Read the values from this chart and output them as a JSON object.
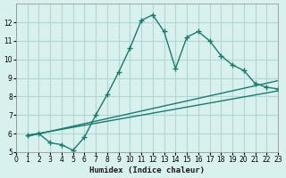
{
  "xlabel": "Humidex (Indice chaleur)",
  "ylabel": "",
  "bg_color": "#d8f0ee",
  "grid_color": "#b0d8d4",
  "line_color": "#1a7a6e",
  "xlim": [
    0,
    23
  ],
  "ylim": [
    5,
    13
  ],
  "yticks": [
    5,
    6,
    7,
    8,
    9,
    10,
    11,
    12
  ],
  "xticks": [
    0,
    1,
    2,
    3,
    4,
    5,
    6,
    7,
    8,
    9,
    10,
    11,
    12,
    13,
    14,
    15,
    16,
    17,
    18,
    19,
    20,
    21,
    22,
    23
  ],
  "series1_x": [
    1,
    2,
    3,
    4,
    5,
    6,
    7,
    8,
    9,
    10,
    11,
    12,
    13,
    14,
    15,
    16,
    17,
    18,
    19,
    20,
    21,
    22,
    23
  ],
  "series1_y": [
    5.9,
    6.0,
    5.5,
    5.4,
    5.1,
    5.8,
    7.0,
    8.1,
    9.3,
    10.6,
    12.1,
    12.4,
    11.5,
    9.5,
    11.2,
    11.5,
    11.0,
    10.2,
    9.7,
    9.4,
    8.7,
    8.5,
    8.4
  ],
  "series2_x": [
    1,
    23
  ],
  "series2_y": [
    5.9,
    8.3
  ],
  "series3_x": [
    1,
    23
  ],
  "series3_y": [
    5.85,
    8.85
  ]
}
